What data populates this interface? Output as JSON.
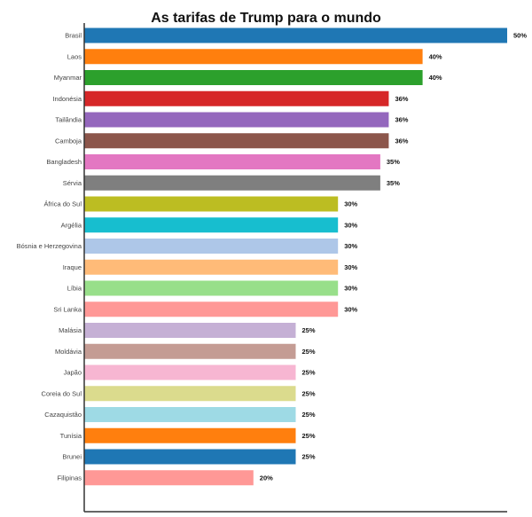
{
  "chart_data": {
    "type": "bar",
    "orientation": "horizontal",
    "title": "As tarifas de Trump para o mundo",
    "xlabel": "",
    "ylabel": "",
    "xlim": [
      0,
      50
    ],
    "grid": false,
    "value_suffix": "%",
    "categories": [
      "Brasil",
      "Laos",
      "Myanmar",
      "Indonésia",
      "Tailândia",
      "Camboja",
      "Bangladesh",
      "Sérvia",
      "África do Sul",
      "Argélia",
      "Bósnia e Herzegovina",
      "Iraque",
      "Líbia",
      "Sri Lanka",
      "Malásia",
      "Moldávia",
      "Japão",
      "Coreia do Sul",
      "Cazaquistão",
      "Tunísia",
      "Brunei",
      "Filipinas"
    ],
    "values": [
      50,
      40,
      40,
      36,
      36,
      36,
      35,
      35,
      30,
      30,
      30,
      30,
      30,
      30,
      25,
      25,
      25,
      25,
      25,
      25,
      25,
      20
    ],
    "colors": [
      "#1f77b4",
      "#ff7f0e",
      "#2ca02c",
      "#d62728",
      "#9467bd",
      "#8c564b",
      "#e377c2",
      "#7f7f7f",
      "#bcbd22",
      "#17becf",
      "#aec7e8",
      "#ffbb78",
      "#98df8a",
      "#ff9896",
      "#c5b0d5",
      "#c49c94",
      "#f7b6d2",
      "#dbdb8d",
      "#9edae5",
      "#ff7f0e",
      "#1f77b4",
      "#ff9896"
    ]
  }
}
